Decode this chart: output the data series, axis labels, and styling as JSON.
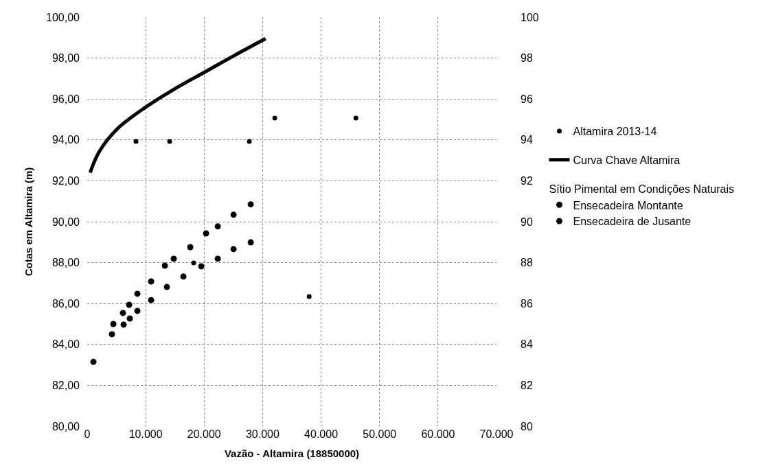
{
  "chart_data": {
    "type": "scatter",
    "xlabel": "Vazão - Altamira (18850000)",
    "ylabel": "Cotas em Altamira (m)",
    "xlim": [
      0,
      70000
    ],
    "xticks": [
      0,
      {
        "value": 10000,
        "label": "10.000"
      },
      {
        "value": 20000,
        "label": "20.000"
      },
      {
        "value": 30000,
        "label": "30.000"
      },
      {
        "value": 40000,
        "label": "40.000"
      },
      {
        "value": 50000,
        "label": "50.000"
      },
      {
        "value": 60000,
        "label": "60.000"
      },
      {
        "value": 70000,
        "label": "70.000"
      }
    ],
    "ylim": [
      80,
      100
    ],
    "yticks": [
      {
        "value": 80,
        "label": "80,00"
      },
      {
        "value": 82,
        "label": "82,00"
      },
      {
        "value": 84,
        "label": "84,00"
      },
      {
        "value": 86,
        "label": "86,00"
      },
      {
        "value": 88,
        "label": "88,00"
      },
      {
        "value": 90,
        "label": "90,00"
      },
      {
        "value": 92,
        "label": "92,00"
      },
      {
        "value": 94,
        "label": "94,00"
      },
      {
        "value": 96,
        "label": "96,00"
      },
      {
        "value": 98,
        "label": "98,00"
      },
      {
        "value": 100,
        "label": "100,00"
      }
    ],
    "y2lim": [
      80,
      100
    ],
    "y2ticks": [
      80,
      82,
      84,
      86,
      88,
      90,
      92,
      94,
      96,
      98,
      100
    ],
    "grid": true,
    "legend": "right",
    "marker": "circle",
    "annotations": [
      "Sítio Pimental em Condições Naturais"
    ],
    "series": [
      {
        "name": "Altamira 2013-14",
        "color": "#000000",
        "x": [
          8340,
          14100,
          18210,
          27730,
          32080,
          37960,
          45950
        ],
        "values": [
          93.93,
          93.93,
          87.99,
          93.93,
          95.07,
          86.34,
          95.07
        ]
      },
      {
        "name": "Curva Chave Altamira",
        "type": "line",
        "marker": "none",
        "color": "#000000",
        "x": [
          500,
          2000,
          5000,
          10000,
          15000,
          20000,
          25000,
          30500
        ],
        "values": [
          92.4,
          93.4,
          94.5,
          95.6,
          96.5,
          97.3,
          98.1,
          98.95
        ]
      },
      {
        "name": "Ensecadeira Montante",
        "color": "#000000",
        "x": [
          1060,
          4470,
          6110,
          7170,
          8580,
          10930,
          13280,
          14800,
          17630,
          20330,
          22330,
          25030,
          27970
        ],
        "values": [
          83.15,
          85.0,
          85.54,
          85.94,
          86.48,
          87.08,
          87.85,
          88.19,
          88.76,
          89.43,
          89.77,
          90.34,
          90.85
        ]
      },
      {
        "name": "Ensecadeira de Jusante",
        "color": "#000000",
        "x": [
          4230,
          6230,
          7290,
          8580,
          10930,
          13630,
          16450,
          19510,
          22330,
          25030,
          27970
        ],
        "values": [
          84.5,
          84.97,
          85.27,
          85.64,
          86.17,
          86.81,
          87.32,
          87.82,
          88.19,
          88.66,
          88.99
        ]
      }
    ]
  }
}
